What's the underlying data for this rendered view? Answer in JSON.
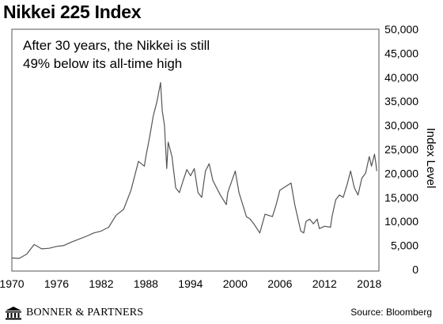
{
  "title": "Nikkei 225 Index",
  "footer": {
    "logo_text": "BONNER & PARTNERS",
    "source": "Source: Bloomberg"
  },
  "colors": {
    "line": "#555555",
    "frame": "#555555",
    "grid": "none",
    "text": "#000000"
  },
  "chart_data": {
    "type": "line",
    "title": "Nikkei 225 Index",
    "annotations": [
      "After 30 years, the Nikkei is still",
      "49% below its all-time high"
    ],
    "xlabel": "",
    "ylabel": "Index Level",
    "y_axis_side": "right",
    "xlim": [
      1970,
      2019.3
    ],
    "ylim": [
      0,
      50000
    ],
    "grid": false,
    "x_ticks": [
      1970,
      1976,
      1982,
      1988,
      1994,
      2000,
      2006,
      2012,
      2018
    ],
    "x_tick_labels": [
      "1970",
      "1976",
      "1982",
      "1988",
      "1994",
      "2000",
      "2006",
      "2012",
      "2018"
    ],
    "y_ticks": [
      0,
      5000,
      10000,
      15000,
      20000,
      25000,
      30000,
      35000,
      40000,
      45000,
      50000
    ],
    "y_tick_labels": [
      "0",
      "5,000",
      "10,000",
      "15,000",
      "20,000",
      "25,000",
      "30,000",
      "35,000",
      "40,000",
      "45,000",
      "50,000"
    ],
    "series": [
      {
        "values": [
          [
            1970,
            2400
          ],
          [
            1971,
            2300
          ],
          [
            1972,
            3200
          ],
          [
            1973,
            5200
          ],
          [
            1974,
            4300
          ],
          [
            1975,
            4400
          ],
          [
            1976,
            4800
          ],
          [
            1977,
            5000
          ],
          [
            1978,
            5700
          ],
          [
            1979,
            6300
          ],
          [
            1980,
            6900
          ],
          [
            1981,
            7600
          ],
          [
            1982,
            8000
          ],
          [
            1983,
            8800
          ],
          [
            1984,
            11300
          ],
          [
            1985,
            12500
          ],
          [
            1986,
            16500
          ],
          [
            1987,
            22500
          ],
          [
            1987.8,
            21500
          ],
          [
            1988,
            23500
          ],
          [
            1988.5,
            27500
          ],
          [
            1989,
            32000
          ],
          [
            1989.5,
            35000
          ],
          [
            1989.98,
            38900
          ],
          [
            1990.2,
            33000
          ],
          [
            1990.5,
            30000
          ],
          [
            1990.8,
            21000
          ],
          [
            1991,
            26500
          ],
          [
            1991.5,
            23500
          ],
          [
            1992,
            17000
          ],
          [
            1992.5,
            16000
          ],
          [
            1993,
            18500
          ],
          [
            1993.5,
            20800
          ],
          [
            1994,
            19500
          ],
          [
            1994.5,
            21000
          ],
          [
            1995,
            16000
          ],
          [
            1995.5,
            15000
          ],
          [
            1996,
            20500
          ],
          [
            1996.5,
            22000
          ],
          [
            1997,
            18500
          ],
          [
            1998,
            15500
          ],
          [
            1998.8,
            13500
          ],
          [
            1999,
            16000
          ],
          [
            2000,
            20500
          ],
          [
            2000.5,
            16000
          ],
          [
            2001,
            13500
          ],
          [
            2001.5,
            11000
          ],
          [
            2002,
            10500
          ],
          [
            2002.5,
            9500
          ],
          [
            2003.3,
            7600
          ],
          [
            2004,
            11500
          ],
          [
            2005,
            11000
          ],
          [
            2005.5,
            13500
          ],
          [
            2006,
            16500
          ],
          [
            2007,
            17500
          ],
          [
            2007.5,
            18000
          ],
          [
            2008,
            13500
          ],
          [
            2008.8,
            8000
          ],
          [
            2009.2,
            7600
          ],
          [
            2009.5,
            10000
          ],
          [
            2010,
            10500
          ],
          [
            2010.5,
            9500
          ],
          [
            2011,
            10500
          ],
          [
            2011.3,
            8500
          ],
          [
            2012,
            9000
          ],
          [
            2012.8,
            8800
          ],
          [
            2013,
            11000
          ],
          [
            2013.5,
            14500
          ],
          [
            2014,
            15500
          ],
          [
            2014.5,
            15000
          ],
          [
            2015,
            17500
          ],
          [
            2015.5,
            20500
          ],
          [
            2016,
            17000
          ],
          [
            2016.5,
            15500
          ],
          [
            2017,
            19000
          ],
          [
            2017.5,
            20000
          ],
          [
            2018,
            23500
          ],
          [
            2018.3,
            21500
          ],
          [
            2018.7,
            24000
          ],
          [
            2018.9,
            22000
          ],
          [
            2019,
            20500
          ]
        ]
      }
    ]
  }
}
